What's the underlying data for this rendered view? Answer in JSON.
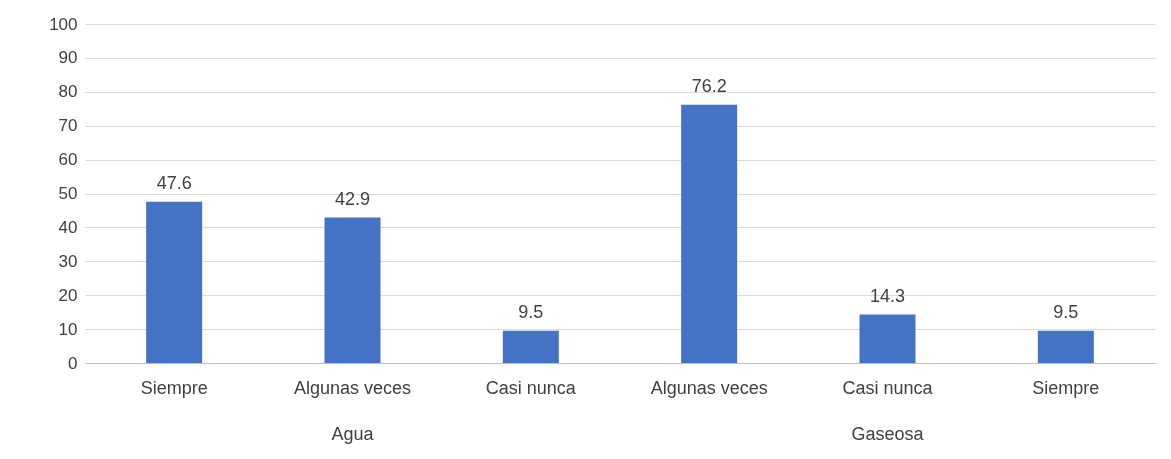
{
  "chart_data": {
    "type": "bar",
    "categories": [
      "Siempre",
      "Algunas veces",
      "Casi nunca",
      "Algunas veces",
      "Casi nunca",
      "Siempre"
    ],
    "values": [
      47.6,
      42.9,
      9.5,
      76.2,
      14.3,
      9.5
    ],
    "color": "#4472c4",
    "ylim": [
      0,
      100
    ],
    "yticks": [
      0,
      10,
      20,
      30,
      40,
      50,
      60,
      70,
      80,
      90,
      100
    ],
    "grid": "y",
    "data_labels": true,
    "annotations": [
      "Agua",
      "Gaseosa"
    ]
  }
}
